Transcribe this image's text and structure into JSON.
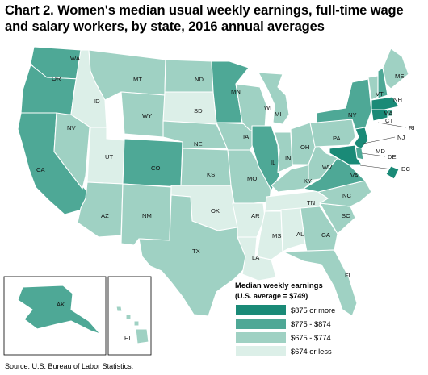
{
  "title": "Chart 2. Women's median usual weekly earnings, full-time wage and salary workers, by state, 2016 annual averages",
  "source": "Source: U.S. Bureau of Labor Statistics.",
  "legend": {
    "title": "Median weekly earnings",
    "subtitle": "(U.S. average = $749)",
    "items": [
      {
        "label": "$875 or more",
        "color": "#1a8a77"
      },
      {
        "label": "$775 - $874",
        "color": "#4ea896"
      },
      {
        "label": "$675 - $774",
        "color": "#9fd1c3"
      },
      {
        "label": "$674 or less",
        "color": "#dcefe8"
      }
    ]
  },
  "states": {
    "WA": "$775 - $874",
    "OR": "$775 - $874",
    "CA": "$775 - $874",
    "NV": "$675 - $774",
    "ID": "$674 or less",
    "UT": "$674 or less",
    "AZ": "$675 - $774",
    "MT": "$675 - $774",
    "WY": "$675 - $774",
    "CO": "$775 - $874",
    "NM": "$675 - $774",
    "ND": "$675 - $774",
    "SD": "$674 or less",
    "NE": "$675 - $774",
    "KS": "$675 - $774",
    "OK": "$674 or less",
    "TX": "$675 - $774",
    "MN": "$775 - $874",
    "IA": "$675 - $774",
    "MO": "$675 - $774",
    "AR": "$674 or less",
    "LA": "$674 or less",
    "WI": "$675 - $774",
    "IL": "$775 - $874",
    "MI": "$675 - $774",
    "IN": "$675 - $774",
    "OH": "$675 - $774",
    "KY": "$675 - $774",
    "TN": "$674 or less",
    "MS": "$674 or less",
    "AL": "$674 or less",
    "GA": "$675 - $774",
    "FL": "$675 - $774",
    "SC": "$675 - $774",
    "NC": "$675 - $774",
    "VA": "$775 - $874",
    "WV": "$675 - $774",
    "PA": "$675 - $774",
    "NY": "$775 - $874",
    "VT": "$675 - $774",
    "NH": "$775 - $874",
    "ME": "$675 - $774",
    "MA": "$875 or more",
    "RI": "$775 - $874",
    "CT": "$875 or more",
    "NJ": "$875 or more",
    "DE": "$775 - $874",
    "MD": "$875 or more",
    "DC": "$875 or more",
    "AK": "$775 - $874",
    "HI": "$675 - $774"
  }
}
